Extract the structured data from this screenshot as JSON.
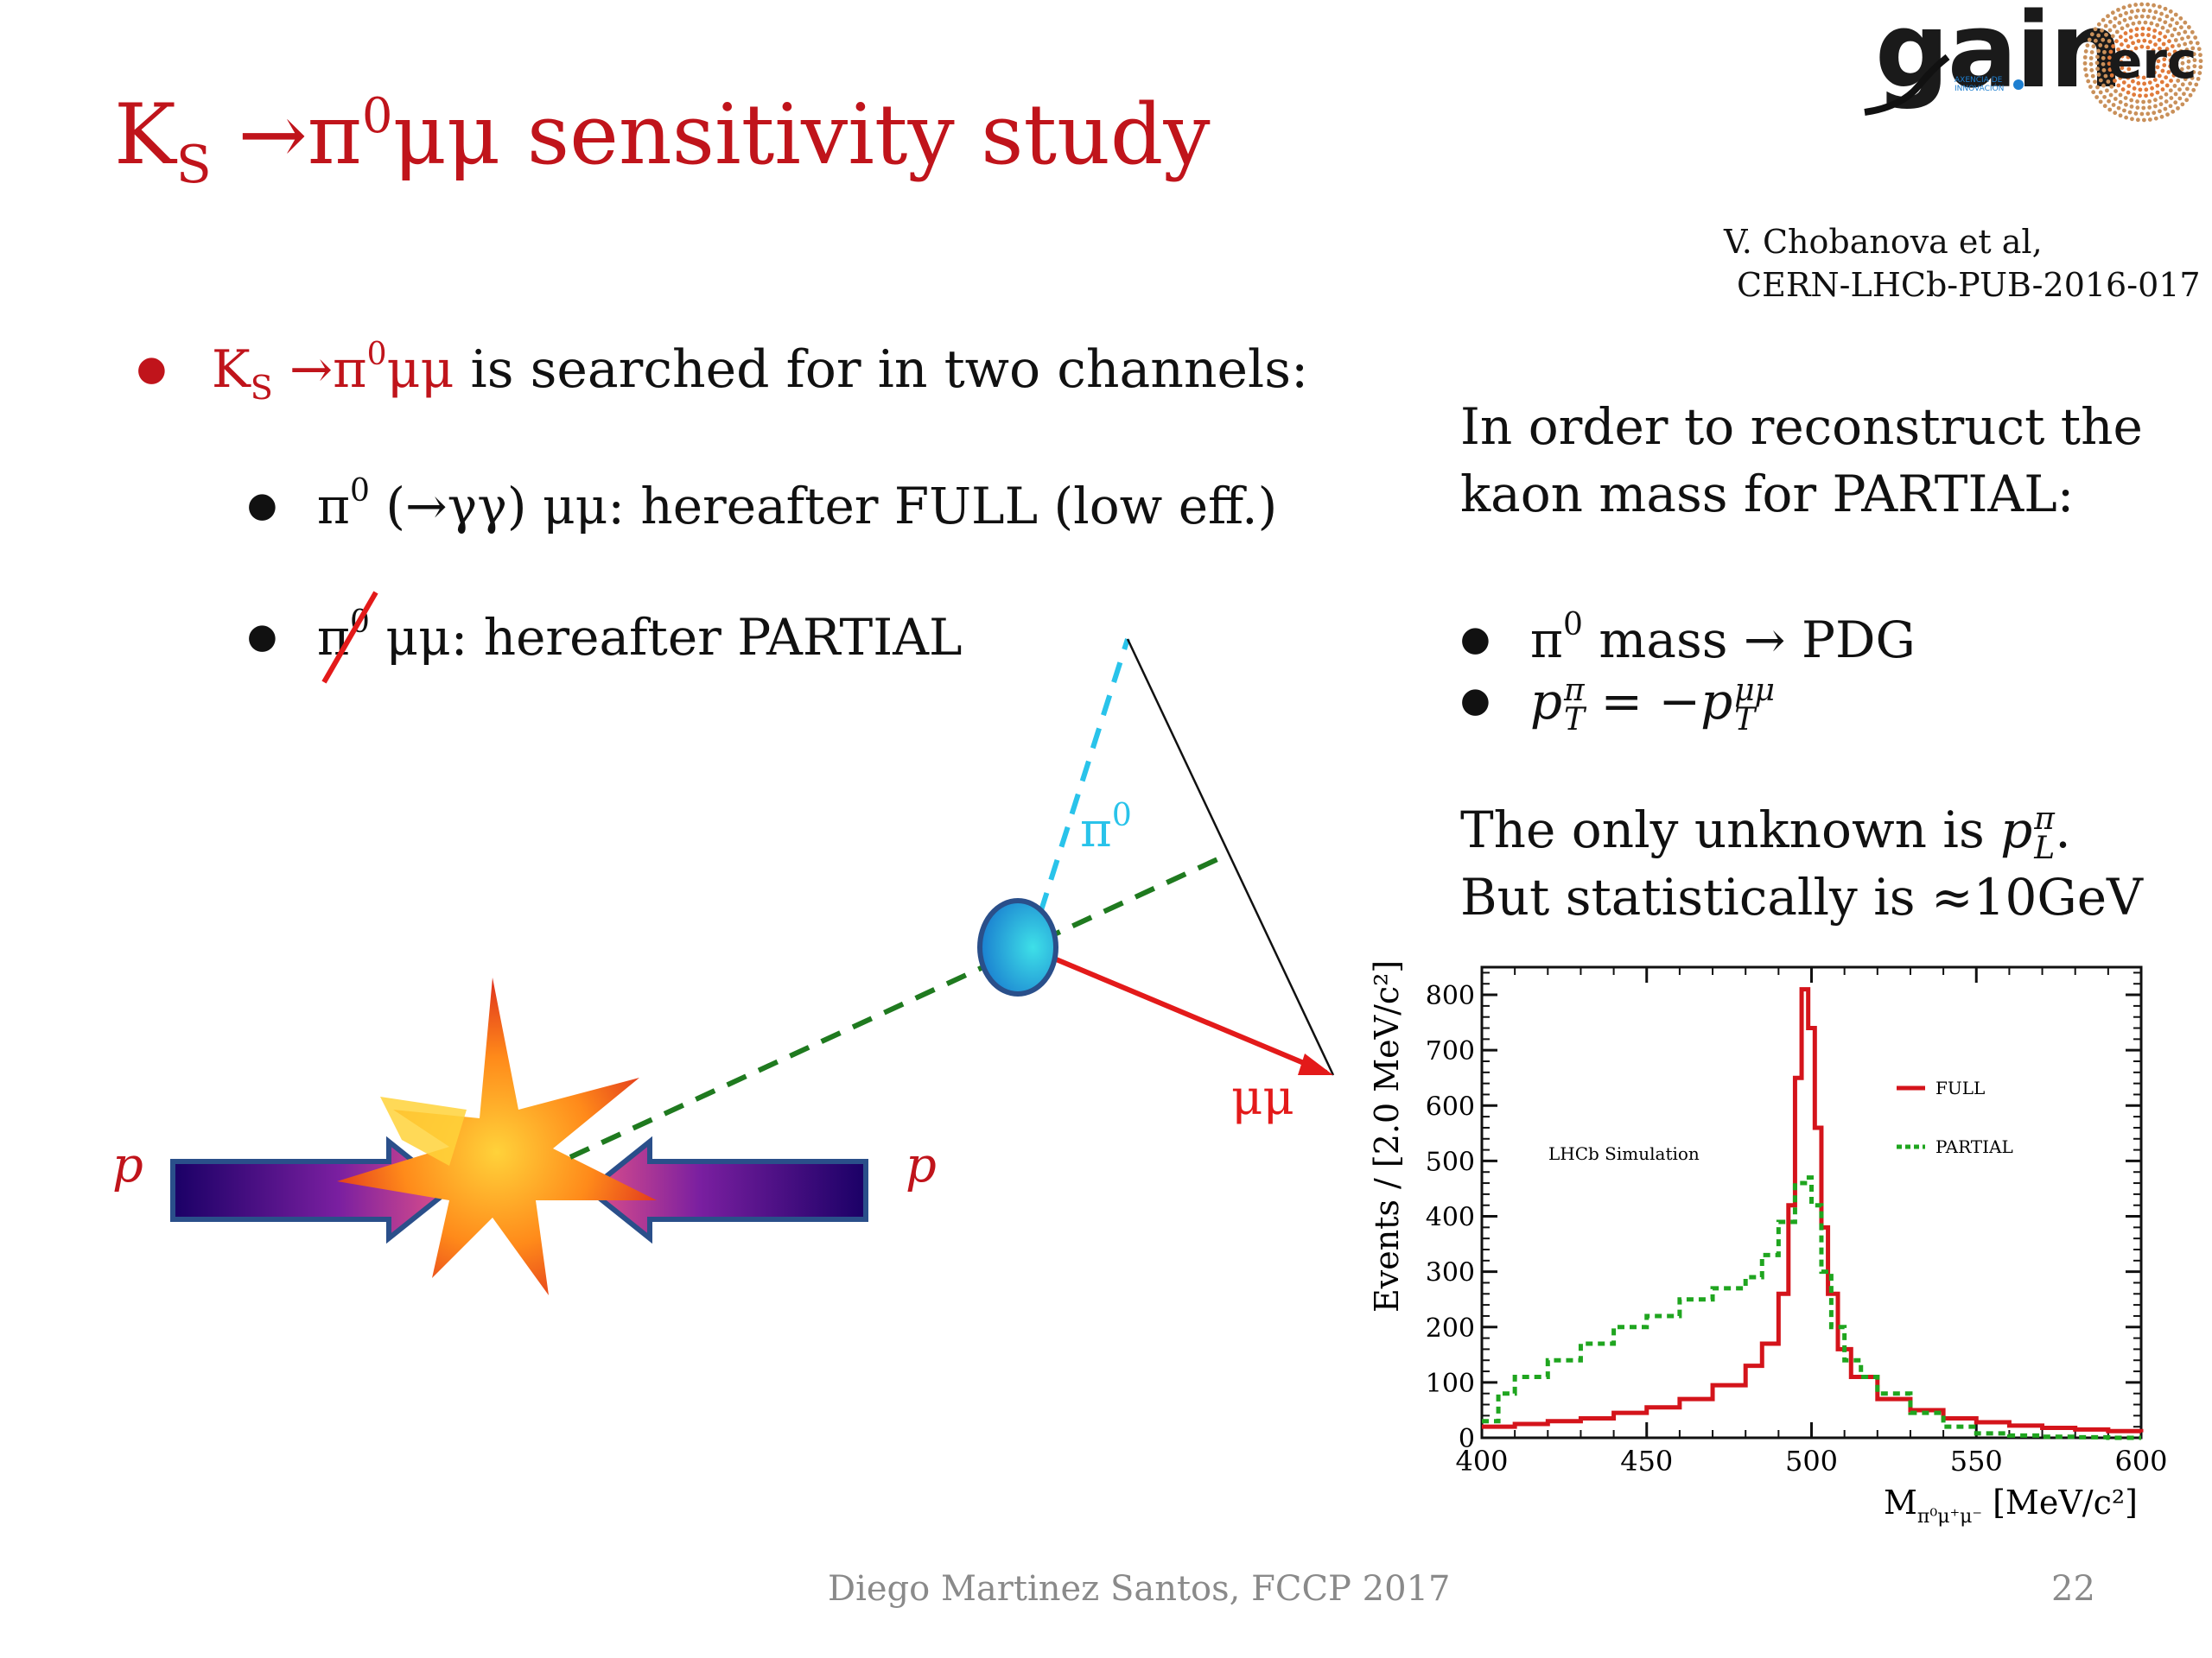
{
  "slide": {
    "title_main": "K",
    "title_sub": "S",
    "title_arrow": " →π",
    "title_sup": "0",
    "title_rest": "μμ sensitivity study",
    "reference_line1": "V. Chobanova et al,",
    "reference_line2": "CERN-LHCb-PUB-2016-017",
    "bullet1": {
      "red_part_k": "K",
      "red_part_sub": "S",
      "red_part_rest": " →π",
      "red_part_sup": "0",
      "red_part_end": "μμ",
      "text": " is searched for in two channels:"
    },
    "bullet2": {
      "pi": "π",
      "sup": "0",
      "text": " (→γγ) μμ: hereafter FULL  (low eff.)"
    },
    "bullet3": {
      "pi": "π",
      "sup": "0",
      "text": " μμ: hereafter PARTIAL"
    },
    "right_intro_line1": "In order to reconstruct the",
    "right_intro_line2": "kaon mass for PARTIAL:",
    "right_bullet1": {
      "pi": "π",
      "sup": "0",
      "text": " mass → PDG"
    },
    "right_bullet2": {
      "lhs": "p",
      "lhs_sup": "π",
      "lhs_sub": "T",
      "mid": " = −p",
      "rhs_sup": "μμ",
      "rhs_sub": "T"
    },
    "right_unknown_line1": "The only unknown is ",
    "right_unknown_p": "p",
    "right_unknown_sup": "π",
    "right_unknown_sub": "L",
    "right_unknown_end": ".",
    "right_unknown_line2": "But statistically is ≈10GeV",
    "footer_author": "Diego Martinez Santos, FCCP 2017",
    "page_number": "22",
    "logo": {
      "gain": "gain",
      "erc": "erc",
      "gain_sub_line1": "AXENCIA DE",
      "gain_sub_line2": "INNOVACIÓN"
    }
  },
  "diagram": {
    "proton_left": "p",
    "proton_right": "p",
    "pi0_label": "π",
    "pi0_sup": "0",
    "mumu_label": "μμ",
    "colors": {
      "pi0_line": "#29c3ea",
      "kaon_line": "#1f7a1f",
      "mumu_arrow": "#e31a1a",
      "labels_red": "#e31a1a",
      "labels_cyan": "#29c3ea"
    }
  },
  "chart_data": {
    "type": "line",
    "annotation": "LHCb Simulation",
    "ylabel": "Events / [2.0 MeV/c²]",
    "xlabel_M": "M",
    "xlabel_sub": "π⁰μ⁺μ⁻",
    "xlabel_units": " [MeV/c²]",
    "xlim": [
      400,
      600
    ],
    "ylim": [
      0,
      850
    ],
    "x_ticks": [
      400,
      450,
      500,
      550,
      600
    ],
    "y_ticks": [
      0,
      100,
      200,
      300,
      400,
      500,
      600,
      700,
      800
    ],
    "legend": [
      {
        "name": "FULL",
        "color": "#d4141b",
        "style": "solid"
      },
      {
        "name": "PARTIAL",
        "color": "#1fa51f",
        "style": "dotted"
      }
    ],
    "series": [
      {
        "name": "FULL",
        "x": [
          400,
          410,
          420,
          430,
          440,
          450,
          460,
          470,
          480,
          485,
          490,
          493,
          495,
          497,
          499,
          501,
          503,
          505,
          508,
          512,
          520,
          530,
          540,
          550,
          560,
          570,
          580,
          590,
          600
        ],
        "y": [
          20,
          25,
          30,
          35,
          45,
          55,
          70,
          95,
          130,
          170,
          260,
          420,
          650,
          810,
          740,
          560,
          380,
          260,
          160,
          110,
          70,
          50,
          35,
          28,
          22,
          18,
          15,
          12,
          10
        ]
      },
      {
        "name": "PARTIAL",
        "x": [
          400,
          405,
          410,
          420,
          430,
          440,
          450,
          460,
          470,
          480,
          485,
          490,
          495,
          498,
          500,
          503,
          506,
          510,
          515,
          520,
          530,
          540,
          550,
          560,
          570,
          580,
          590,
          600
        ],
        "y": [
          30,
          80,
          110,
          140,
          170,
          200,
          220,
          250,
          270,
          290,
          330,
          390,
          460,
          470,
          420,
          300,
          200,
          140,
          110,
          80,
          45,
          20,
          8,
          4,
          2,
          1,
          0,
          0
        ]
      }
    ]
  }
}
